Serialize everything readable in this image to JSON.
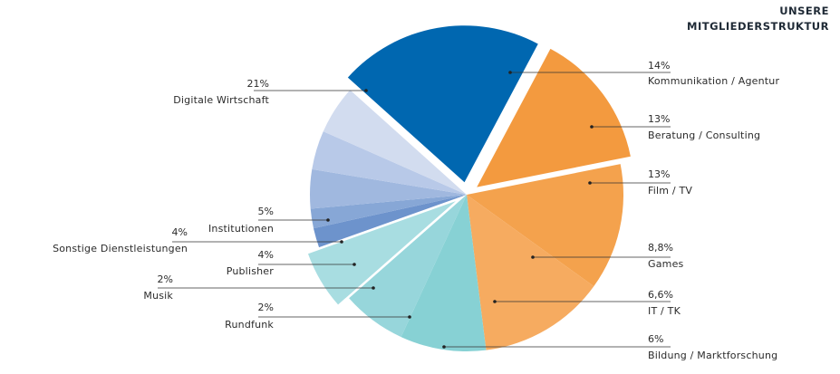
{
  "chart_data": {
    "type": "pie",
    "title_lines": [
      "UNSERE",
      "MITGLIEDERSTRUKTUR"
    ],
    "slices": [
      {
        "label": "Kommunikation / Agentur",
        "value": 14,
        "value_label": "14%",
        "color": "#f39a3f",
        "exploded": true
      },
      {
        "label": "Beratung / Consulting",
        "value": 13,
        "value_label": "13%",
        "color": "#f4a24d",
        "exploded": false
      },
      {
        "label": "Film / TV",
        "value": 13,
        "value_label": "13%",
        "color": "#f6ab60",
        "exploded": false
      },
      {
        "label": "Games",
        "value": 8.8,
        "value_label": "8,8%",
        "color": "#87d1d4",
        "exploded": false
      },
      {
        "label": "IT / TK",
        "value": 6.6,
        "value_label": "6,6%",
        "color": "#97d6db",
        "exploded": false
      },
      {
        "label": "Bildung / Marktforschung",
        "value": 6,
        "value_label": "6%",
        "color": "#a8dde1",
        "exploded": true
      },
      {
        "label": "Rundfunk",
        "value": 2,
        "value_label": "2%",
        "color": "#6d93cc",
        "exploded": false
      },
      {
        "label": "Musik",
        "value": 2,
        "value_label": "2%",
        "color": "#87a7d6",
        "exploded": false
      },
      {
        "label": "Publisher",
        "value": 4,
        "value_label": "4%",
        "color": "#a0b8df",
        "exploded": false
      },
      {
        "label": "Sonstige Dienstleistungen",
        "value": 4,
        "value_label": "4%",
        "color": "#b8c9e8",
        "exploded": false
      },
      {
        "label": "Institutionen",
        "value": 5,
        "value_label": "5%",
        "color": "#d2dcef",
        "exploded": false
      },
      {
        "label": "Digitale Wirtschaft",
        "value": 21,
        "value_label": "21%",
        "color": "#0067b0",
        "exploded": true
      }
    ]
  }
}
